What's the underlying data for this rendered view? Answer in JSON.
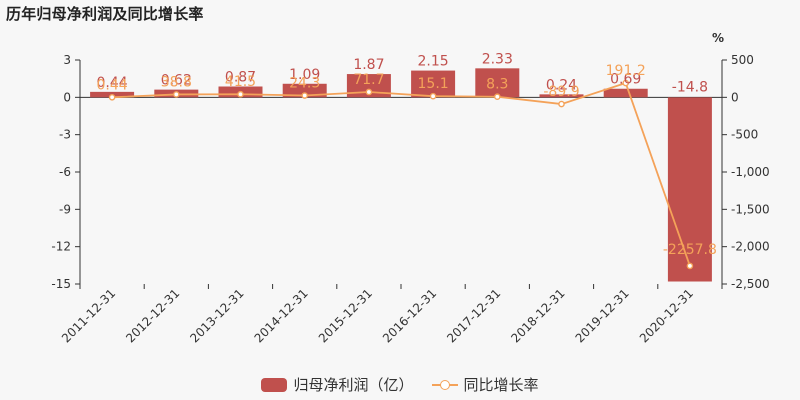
{
  "page_title": "历年归母净利润及同比增长率",
  "right_axis_unit": "%",
  "legend": {
    "bar_label": "归母净利润（亿）",
    "line_label": "同比增长率"
  },
  "colors": {
    "bar": "#c0504d",
    "line": "#f4a259",
    "bar_label": "#c0504d",
    "line_label": "#f4a259",
    "axis": "#333333",
    "background": "#f7f7f7"
  },
  "chart_data": {
    "type": "bar",
    "title": "历年归母净利润及同比增长率",
    "categories": [
      "2011-12-31",
      "2012-12-31",
      "2013-12-31",
      "2014-12-31",
      "2015-12-31",
      "2016-12-31",
      "2017-12-31",
      "2018-12-31",
      "2019-12-31",
      "2020-12-31"
    ],
    "series": [
      {
        "name": "归母净利润（亿）",
        "type": "bar",
        "axis": "left",
        "values": [
          0.44,
          0.62,
          0.87,
          1.09,
          1.87,
          2.15,
          2.33,
          0.24,
          0.69,
          -14.8
        ],
        "labels": [
          "0.44",
          "0.62",
          "0.87",
          "1.09",
          "1.87",
          "2.15",
          "2.33",
          "0.24",
          "0.69",
          "-14.8"
        ]
      },
      {
        "name": "同比增长率",
        "type": "line",
        "axis": "right",
        "values": [
          0.44,
          38.8,
          41.5,
          24.3,
          71.7,
          15.1,
          8.3,
          -89.9,
          191.2,
          -2257.8
        ],
        "labels": [
          "0.44",
          "38.8",
          "41.5",
          "24.3",
          "71.7",
          "15.1",
          "8.3",
          "-89.9",
          "191.2",
          "-2257.8"
        ]
      }
    ],
    "y_left": {
      "ylim": [
        -15,
        3
      ],
      "ticks": [
        3,
        0,
        -3,
        -6,
        -9,
        -12,
        -15
      ]
    },
    "y_right": {
      "ylim": [
        -2500,
        500
      ],
      "ticks": [
        "500",
        "0",
        "-500",
        "-1,000",
        "-1,500",
        "-2,000",
        "-2,500"
      ],
      "tick_values": [
        500,
        0,
        -500,
        -1000,
        -1500,
        -2000,
        -2500
      ],
      "unit": "%"
    },
    "grid": false,
    "legend_position": "bottom"
  }
}
